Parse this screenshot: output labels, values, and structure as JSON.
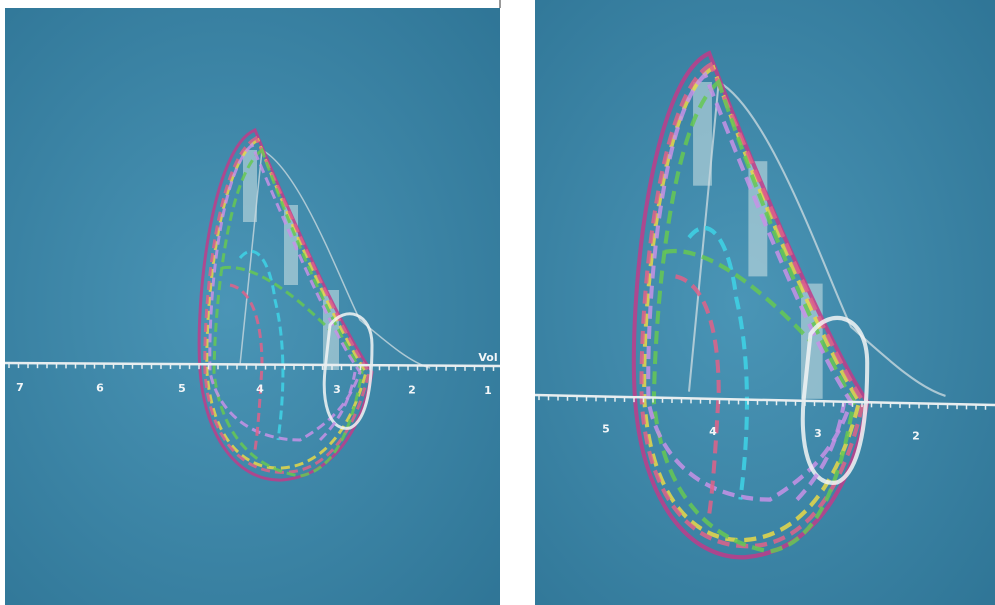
{
  "panels": [
    {
      "axis_labels": [
        "7",
        "6",
        "5",
        "4",
        "3",
        "2",
        "1"
      ],
      "axis_title": "Vol"
    },
    {
      "axis_labels": [
        "5",
        "4",
        "3",
        "2"
      ]
    }
  ]
}
